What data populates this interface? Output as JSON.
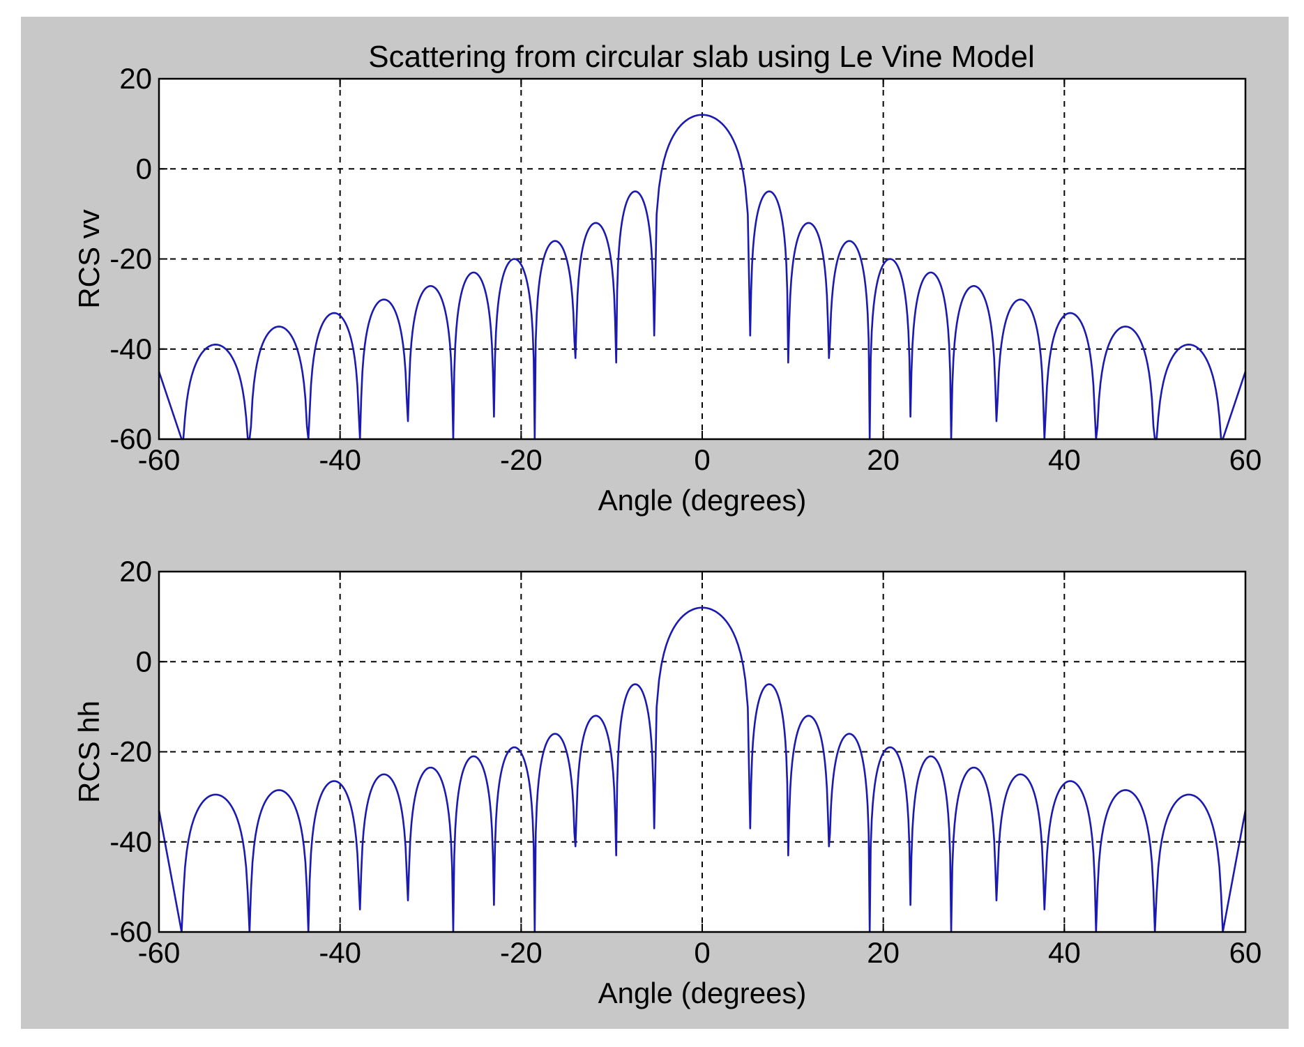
{
  "figure": {
    "title": "Scattering from circular slab using Le Vine Model",
    "background_color": "#c8c8c8",
    "plot_background_color": "#ffffff",
    "line_color": "#1a1ab0",
    "grid": "dashed black"
  },
  "chart_data": [
    {
      "type": "line",
      "title": "Scattering from circular slab using Le Vine Model",
      "xlabel": "Angle (degrees)",
      "ylabel": "RCS vv",
      "xlim": [
        -60,
        60
      ],
      "ylim": [
        -60,
        20
      ],
      "xticks": [
        "-60",
        "-40",
        "-20",
        "0",
        "20",
        "40",
        "60"
      ],
      "yticks": [
        "20",
        "0",
        "-20",
        "-40",
        "-60"
      ],
      "grid": true,
      "series": [
        {
          "color": "#1a1ab0",
          "peak_db": 12,
          "lobes": [
            {
              "angle": -53.5,
              "db": -39
            },
            {
              "angle": -47.0,
              "db": -35
            },
            {
              "angle": -40.5,
              "db": -32
            },
            {
              "angle": -35.0,
              "db": -29
            },
            {
              "angle": -29.5,
              "db": -26
            },
            {
              "angle": -25.0,
              "db": -23
            },
            {
              "angle": -20.5,
              "db": -20
            },
            {
              "angle": -16.0,
              "db": -16
            },
            {
              "angle": -11.5,
              "db": -12
            },
            {
              "angle": -7.0,
              "db": -5
            },
            {
              "angle": 7.0,
              "db": -5
            },
            {
              "angle": 11.5,
              "db": -12
            },
            {
              "angle": 16.0,
              "db": -16
            },
            {
              "angle": 20.5,
              "db": -20
            },
            {
              "angle": 25.0,
              "db": -23
            },
            {
              "angle": 29.5,
              "db": -26
            },
            {
              "angle": 35.0,
              "db": -29
            },
            {
              "angle": 40.5,
              "db": -32
            },
            {
              "angle": 47.0,
              "db": -35
            },
            {
              "angle": 53.5,
              "db": -39
            }
          ],
          "nulls": [
            {
              "angle": -57.5,
              "db": -60
            },
            {
              "angle": -50.0,
              "db": -60
            },
            {
              "angle": -43.5,
              "db": -60
            },
            {
              "angle": -37.8,
              "db": -60
            },
            {
              "angle": -32.5,
              "db": -56
            },
            {
              "angle": -27.5,
              "db": -60
            },
            {
              "angle": -23.0,
              "db": -55
            },
            {
              "angle": -18.5,
              "db": -60
            },
            {
              "angle": -14.0,
              "db": -42
            },
            {
              "angle": -9.5,
              "db": -43
            },
            {
              "angle": -5.3,
              "db": -37
            },
            {
              "angle": 5.3,
              "db": -37
            },
            {
              "angle": 9.5,
              "db": -43
            },
            {
              "angle": 14.0,
              "db": -42
            },
            {
              "angle": 18.5,
              "db": -60
            },
            {
              "angle": 23.0,
              "db": -55
            },
            {
              "angle": 27.5,
              "db": -60
            },
            {
              "angle": 32.5,
              "db": -56
            },
            {
              "angle": 37.8,
              "db": -60
            },
            {
              "angle": 43.5,
              "db": -60
            },
            {
              "angle": 50.0,
              "db": -60
            },
            {
              "angle": 57.5,
              "db": -60
            }
          ],
          "edge_values": [
            {
              "angle": -60,
              "db": -45
            },
            {
              "angle": 60,
              "db": -45
            }
          ]
        }
      ]
    },
    {
      "type": "line",
      "xlabel": "Angle (degrees)",
      "ylabel": "RCS hh",
      "xlim": [
        -60,
        60
      ],
      "ylim": [
        -60,
        20
      ],
      "xticks": [
        "-60",
        "-40",
        "-20",
        "0",
        "20",
        "40",
        "60"
      ],
      "yticks": [
        "20",
        "0",
        "-20",
        "-40",
        "-60"
      ],
      "grid": true,
      "series": [
        {
          "color": "#1a1ab0",
          "peak_db": 12,
          "lobes": [
            {
              "angle": -53.5,
              "db": -29.5
            },
            {
              "angle": -47.0,
              "db": -28.5
            },
            {
              "angle": -40.5,
              "db": -26.5
            },
            {
              "angle": -35.0,
              "db": -25
            },
            {
              "angle": -29.5,
              "db": -23.5
            },
            {
              "angle": -25.0,
              "db": -21
            },
            {
              "angle": -20.5,
              "db": -19
            },
            {
              "angle": -16.0,
              "db": -16
            },
            {
              "angle": -11.5,
              "db": -12
            },
            {
              "angle": -7.0,
              "db": -5
            },
            {
              "angle": 7.0,
              "db": -5
            },
            {
              "angle": 11.5,
              "db": -12
            },
            {
              "angle": 16.0,
              "db": -16
            },
            {
              "angle": 20.5,
              "db": -19
            },
            {
              "angle": 25.0,
              "db": -21
            },
            {
              "angle": 29.5,
              "db": -23.5
            },
            {
              "angle": 35.0,
              "db": -25
            },
            {
              "angle": 40.5,
              "db": -26.5
            },
            {
              "angle": 47.0,
              "db": -28.5
            },
            {
              "angle": 53.5,
              "db": -29.5
            }
          ],
          "nulls": [
            {
              "angle": -57.5,
              "db": -60
            },
            {
              "angle": -50.0,
              "db": -60
            },
            {
              "angle": -43.5,
              "db": -60
            },
            {
              "angle": -37.8,
              "db": -55
            },
            {
              "angle": -32.5,
              "db": -53
            },
            {
              "angle": -27.5,
              "db": -60
            },
            {
              "angle": -23.0,
              "db": -54
            },
            {
              "angle": -18.5,
              "db": -60
            },
            {
              "angle": -14.0,
              "db": -41
            },
            {
              "angle": -9.5,
              "db": -43
            },
            {
              "angle": -5.3,
              "db": -37
            },
            {
              "angle": 5.3,
              "db": -37
            },
            {
              "angle": 9.5,
              "db": -43
            },
            {
              "angle": 14.0,
              "db": -41
            },
            {
              "angle": 18.5,
              "db": -60
            },
            {
              "angle": 23.0,
              "db": -54
            },
            {
              "angle": 27.5,
              "db": -60
            },
            {
              "angle": 32.5,
              "db": -53
            },
            {
              "angle": 37.8,
              "db": -55
            },
            {
              "angle": 43.5,
              "db": -60
            },
            {
              "angle": 50.0,
              "db": -60
            },
            {
              "angle": 57.5,
              "db": -60
            }
          ],
          "edge_values": [
            {
              "angle": -60,
              "db": -33
            },
            {
              "angle": 60,
              "db": -33
            }
          ]
        }
      ]
    }
  ]
}
